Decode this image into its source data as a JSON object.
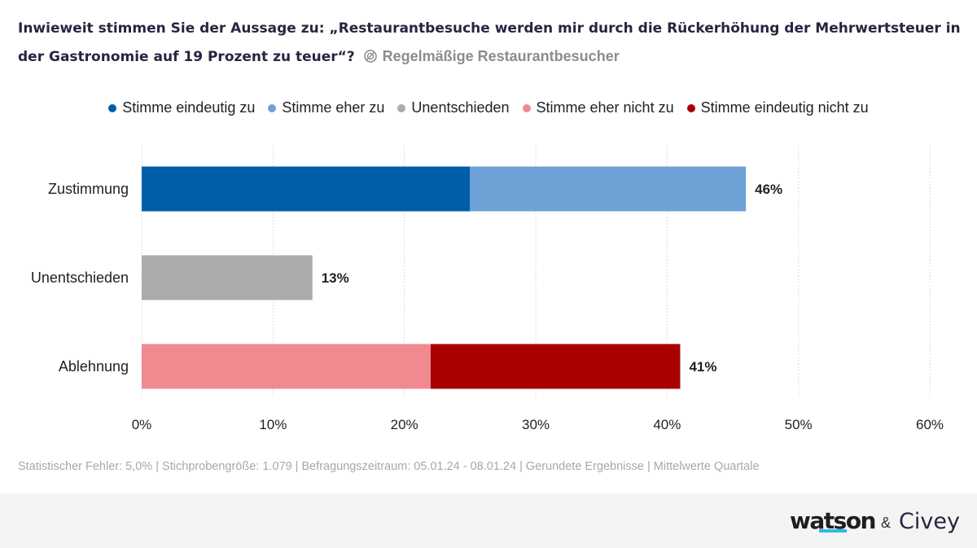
{
  "header": {
    "title": "Inwieweit stimmen Sie der Aussage zu: „Restaurantbesuche werden mir durch die Rückerhöhung der Mehrwertsteuer in der Gastronomie auf 19 Prozent zu teuer“?",
    "subtitle": "Regelmäßige Restaurantbesucher",
    "subtitle_icon": "filter-icon"
  },
  "chart_data": {
    "type": "bar",
    "orientation": "horizontal",
    "stacked": true,
    "categories": [
      "Zustimmung",
      "Unentschieden",
      "Ablehnung"
    ],
    "series": [
      {
        "name": "Stimme eindeutig zu",
        "color": "#005ea8",
        "values": [
          25,
          0,
          0
        ]
      },
      {
        "name": "Stimme eher zu",
        "color": "#6ea2d6",
        "values": [
          21,
          0,
          0
        ]
      },
      {
        "name": "Unentschieden",
        "color": "#acacac",
        "values": [
          0,
          13,
          0
        ]
      },
      {
        "name": "Stimme eher nicht zu",
        "color": "#f08a90",
        "values": [
          0,
          0,
          22
        ]
      },
      {
        "name": "Stimme eindeutig nicht zu",
        "color": "#a80000",
        "values": [
          0,
          0,
          19
        ]
      }
    ],
    "totals": [
      "46%",
      "13%",
      "41%"
    ],
    "xlim": [
      0,
      60
    ],
    "xticks": [
      0,
      10,
      20,
      30,
      40,
      50,
      60
    ],
    "tick_labels": [
      "0%",
      "10%",
      "20%",
      "30%",
      "40%",
      "50%",
      "60%"
    ],
    "grid": true,
    "legend": "top-center"
  },
  "footer": {
    "note": "Statistischer Fehler: 5,0% | Stichprobengröße: 1.079 | Befragungszeitraum: 05.01.24 - 08.01.24 | Gerundete Ergebnisse | Mittelwerte Quartale",
    "brand_watson": "watson",
    "brand_amp": "&",
    "brand_civey": "Civey"
  }
}
